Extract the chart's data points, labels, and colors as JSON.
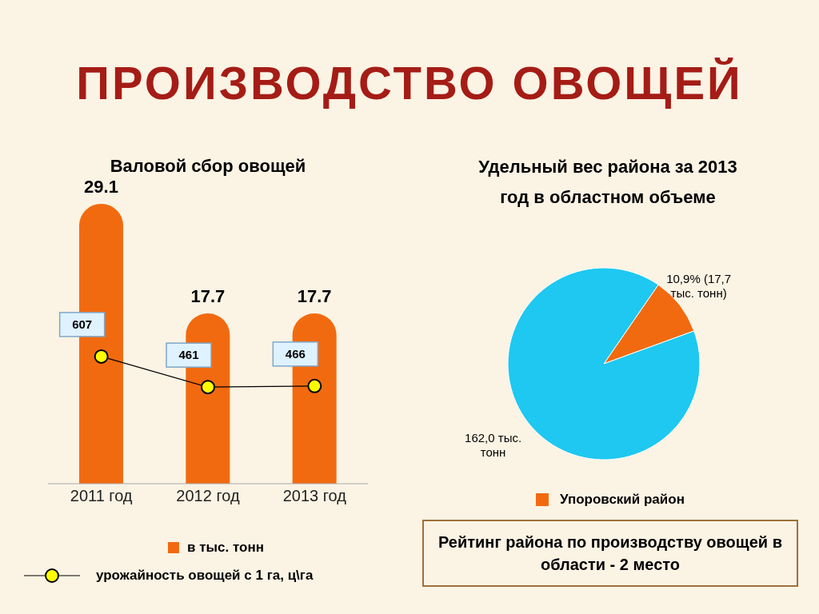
{
  "chart_data": [
    {
      "type": "bar",
      "title": "ПРОИЗВОДСТВО ОВОЩЕЙ",
      "subtitle": "Валовой сбор овощей",
      "categories": [
        "2011 год",
        "2012 год",
        "2013 год"
      ],
      "series": [
        {
          "name": "в тыс. тонн",
          "color": "#f26a10",
          "values": [
            29.1,
            17.7,
            17.7
          ]
        },
        {
          "name": "урожайность овощей с 1 га, ц\\га",
          "type": "line",
          "axis": "y2",
          "color": "#000000",
          "values": [
            607,
            461,
            466
          ]
        }
      ],
      "data_labels": true,
      "marker": "circle",
      "legend": "bottom"
    },
    {
      "type": "pie",
      "title": "Удельный вес района за 2013 год в областном объеме",
      "categories": [
        "Упоровский район",
        null
      ],
      "values": [
        17.7,
        162.0
      ],
      "colors": [
        "#f26a10",
        "#1ec8f0"
      ],
      "value_labels": [
        "10,9% (17,7 тыс. тонн)",
        "162,0 тыс. тонн"
      ],
      "legend": "bottom",
      "annotations": [
        "Рейтинг района по производству овощей в области -  2 место"
      ]
    }
  ]
}
